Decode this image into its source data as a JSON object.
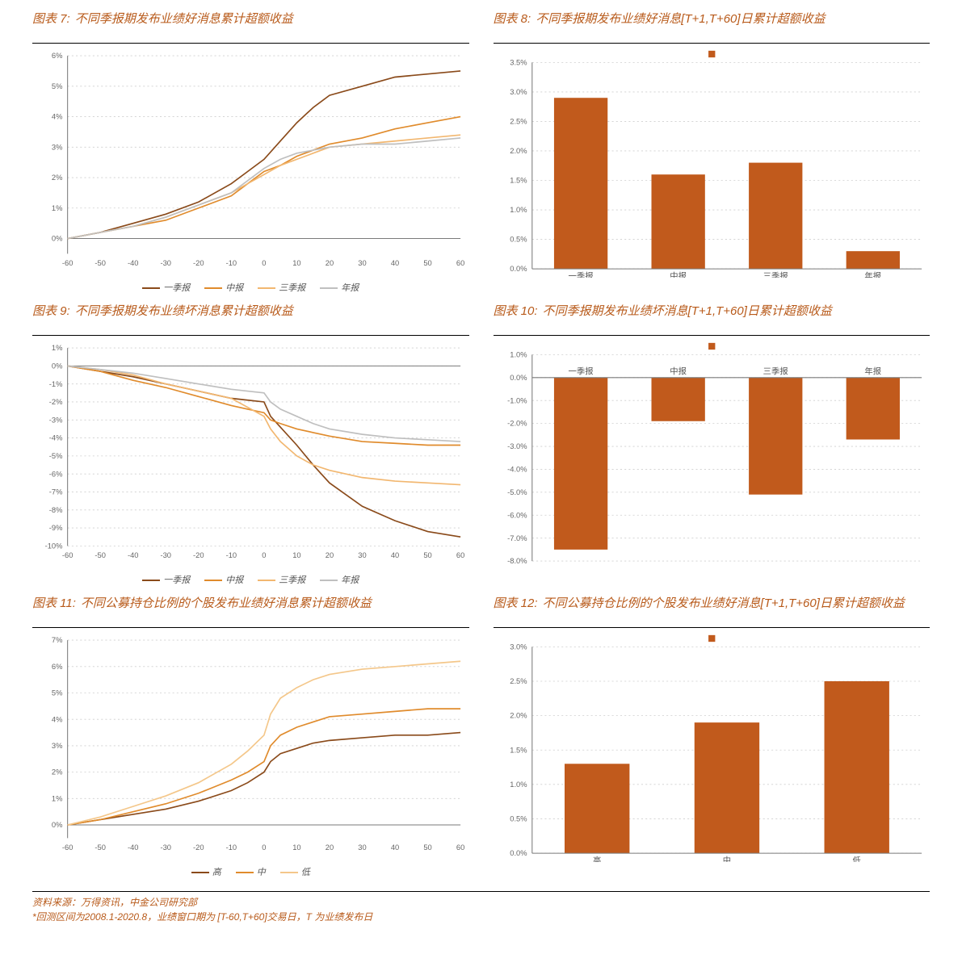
{
  "palette": {
    "bg": "#ffffff",
    "axis": "#7a7a7a",
    "grid": "#cfcfcf",
    "title": "#b85a1a"
  },
  "footer": {
    "line1": "资料来源：万得资讯，中金公司研究部",
    "line2": "*回测区间为2008.1-2020.8，业绩窗口期为 [T-60,T+60]交易日，T 为业绩发布日"
  },
  "charts": [
    {
      "id": "c7",
      "type": "line",
      "prefix": "图表 7:",
      "title": "不同季报期发布业绩好消息累计超额收益",
      "x_domain": [
        -60,
        60
      ],
      "y_domain": [
        -0.005,
        0.06
      ],
      "x_ticks": [
        -60,
        -50,
        -40,
        -30,
        -20,
        -10,
        0,
        10,
        20,
        30,
        40,
        50,
        60
      ],
      "y_ticks": [
        0,
        0.01,
        0.02,
        0.03,
        0.04,
        0.05,
        0.06
      ],
      "y_labels": [
        "0%",
        "1%",
        "2%",
        "3%",
        "4%",
        "5%",
        "6%"
      ],
      "x_labels": [
        "-60",
        "-50",
        "-40",
        "-30",
        "-20",
        "-10",
        "0",
        "10",
        "20",
        "30",
        "40",
        "50",
        "60"
      ],
      "legend": [
        "一季报",
        "中报",
        "三季报",
        "年报"
      ],
      "colors": [
        "#8a4a1a",
        "#e08b2c",
        "#f2b770",
        "#bfbfbf"
      ],
      "line_width": 1.6,
      "series": [
        [
          [
            -60,
            0
          ],
          [
            -50,
            0.002
          ],
          [
            -40,
            0.005
          ],
          [
            -30,
            0.008
          ],
          [
            -20,
            0.012
          ],
          [
            -10,
            0.018
          ],
          [
            -5,
            0.022
          ],
          [
            0,
            0.026
          ],
          [
            5,
            0.032
          ],
          [
            10,
            0.038
          ],
          [
            15,
            0.043
          ],
          [
            20,
            0.047
          ],
          [
            30,
            0.05
          ],
          [
            40,
            0.053
          ],
          [
            50,
            0.054
          ],
          [
            60,
            0.055
          ]
        ],
        [
          [
            -60,
            0
          ],
          [
            -50,
            0.002
          ],
          [
            -40,
            0.004
          ],
          [
            -30,
            0.006
          ],
          [
            -20,
            0.01
          ],
          [
            -10,
            0.014
          ],
          [
            -5,
            0.018
          ],
          [
            0,
            0.022
          ],
          [
            5,
            0.024
          ],
          [
            10,
            0.027
          ],
          [
            15,
            0.029
          ],
          [
            20,
            0.031
          ],
          [
            30,
            0.033
          ],
          [
            40,
            0.036
          ],
          [
            50,
            0.038
          ],
          [
            60,
            0.04
          ]
        ],
        [
          [
            -60,
            0
          ],
          [
            -50,
            0.002
          ],
          [
            -40,
            0.004
          ],
          [
            -30,
            0.007
          ],
          [
            -20,
            0.011
          ],
          [
            -10,
            0.015
          ],
          [
            -5,
            0.018
          ],
          [
            0,
            0.021
          ],
          [
            5,
            0.024
          ],
          [
            10,
            0.026
          ],
          [
            15,
            0.028
          ],
          [
            20,
            0.03
          ],
          [
            30,
            0.031
          ],
          [
            40,
            0.032
          ],
          [
            50,
            0.033
          ],
          [
            60,
            0.034
          ]
        ],
        [
          [
            -60,
            0
          ],
          [
            -50,
            0.002
          ],
          [
            -40,
            0.004
          ],
          [
            -30,
            0.007
          ],
          [
            -20,
            0.011
          ],
          [
            -10,
            0.015
          ],
          [
            -5,
            0.019
          ],
          [
            0,
            0.023
          ],
          [
            5,
            0.026
          ],
          [
            10,
            0.028
          ],
          [
            15,
            0.029
          ],
          [
            20,
            0.03
          ],
          [
            30,
            0.031
          ],
          [
            40,
            0.031
          ],
          [
            50,
            0.032
          ],
          [
            60,
            0.033
          ]
        ]
      ]
    },
    {
      "id": "c8",
      "type": "bar",
      "prefix": "图表 8:",
      "title": "不同季报期发布业绩好消息[T+1,T+60]日累计超额收益",
      "categories": [
        "一季报",
        "中报",
        "三季报",
        "年报"
      ],
      "values": [
        0.029,
        0.016,
        0.018,
        0.003
      ],
      "y_domain": [
        0,
        0.035
      ],
      "y_ticks": [
        0,
        0.005,
        0.01,
        0.015,
        0.02,
        0.025,
        0.03,
        0.035
      ],
      "y_labels": [
        "0.0%",
        "0.5%",
        "1.0%",
        "1.5%",
        "2.0%",
        "2.5%",
        "3.0%",
        "3.5%"
      ],
      "bar_color": "#c15a1c",
      "bar_width": 0.55,
      "legend_marker": true
    },
    {
      "id": "c9",
      "type": "line",
      "prefix": "图表 9:",
      "title": "不同季报期发布业绩坏消息累计超额收益",
      "x_domain": [
        -60,
        60
      ],
      "y_domain": [
        -0.1,
        0.01
      ],
      "x_ticks": [
        -60,
        -50,
        -40,
        -30,
        -20,
        -10,
        0,
        10,
        20,
        30,
        40,
        50,
        60
      ],
      "y_ticks": [
        -0.1,
        -0.09,
        -0.08,
        -0.07,
        -0.06,
        -0.05,
        -0.04,
        -0.03,
        -0.02,
        -0.01,
        0,
        0.01
      ],
      "y_labels": [
        "-10%",
        "-9%",
        "-8%",
        "-7%",
        "-6%",
        "-5%",
        "-4%",
        "-3%",
        "-2%",
        "-1%",
        "0%",
        "1%"
      ],
      "x_labels": [
        "-60",
        "-50",
        "-40",
        "-30",
        "-20",
        "-10",
        "0",
        "10",
        "20",
        "30",
        "40",
        "50",
        "60"
      ],
      "legend": [
        "一季报",
        "中报",
        "三季报",
        "年报"
      ],
      "colors": [
        "#8a4a1a",
        "#e08b2c",
        "#f2b770",
        "#bfbfbf"
      ],
      "line_width": 1.6,
      "series": [
        [
          [
            -60,
            0
          ],
          [
            -50,
            -0.003
          ],
          [
            -40,
            -0.006
          ],
          [
            -30,
            -0.01
          ],
          [
            -20,
            -0.014
          ],
          [
            -10,
            -0.018
          ],
          [
            -5,
            -0.019
          ],
          [
            0,
            -0.02
          ],
          [
            2,
            -0.028
          ],
          [
            5,
            -0.034
          ],
          [
            10,
            -0.044
          ],
          [
            15,
            -0.055
          ],
          [
            20,
            -0.065
          ],
          [
            30,
            -0.078
          ],
          [
            40,
            -0.086
          ],
          [
            50,
            -0.092
          ],
          [
            60,
            -0.095
          ]
        ],
        [
          [
            -60,
            0
          ],
          [
            -50,
            -0.003
          ],
          [
            -40,
            -0.008
          ],
          [
            -30,
            -0.012
          ],
          [
            -20,
            -0.017
          ],
          [
            -10,
            -0.022
          ],
          [
            -5,
            -0.024
          ],
          [
            0,
            -0.026
          ],
          [
            2,
            -0.03
          ],
          [
            5,
            -0.032
          ],
          [
            10,
            -0.035
          ],
          [
            15,
            -0.037
          ],
          [
            20,
            -0.039
          ],
          [
            30,
            -0.042
          ],
          [
            40,
            -0.043
          ],
          [
            50,
            -0.044
          ],
          [
            60,
            -0.044
          ]
        ],
        [
          [
            -60,
            0
          ],
          [
            -50,
            -0.002
          ],
          [
            -40,
            -0.005
          ],
          [
            -30,
            -0.01
          ],
          [
            -20,
            -0.014
          ],
          [
            -10,
            -0.018
          ],
          [
            -5,
            -0.023
          ],
          [
            0,
            -0.028
          ],
          [
            2,
            -0.035
          ],
          [
            5,
            -0.042
          ],
          [
            10,
            -0.05
          ],
          [
            15,
            -0.055
          ],
          [
            20,
            -0.058
          ],
          [
            30,
            -0.062
          ],
          [
            40,
            -0.064
          ],
          [
            50,
            -0.065
          ],
          [
            60,
            -0.066
          ]
        ],
        [
          [
            -60,
            0
          ],
          [
            -50,
            -0.002
          ],
          [
            -40,
            -0.004
          ],
          [
            -30,
            -0.007
          ],
          [
            -20,
            -0.01
          ],
          [
            -10,
            -0.013
          ],
          [
            -5,
            -0.014
          ],
          [
            0,
            -0.015
          ],
          [
            2,
            -0.02
          ],
          [
            5,
            -0.024
          ],
          [
            10,
            -0.028
          ],
          [
            15,
            -0.032
          ],
          [
            20,
            -0.035
          ],
          [
            30,
            -0.038
          ],
          [
            40,
            -0.04
          ],
          [
            50,
            -0.041
          ],
          [
            60,
            -0.042
          ]
        ]
      ]
    },
    {
      "id": "c10",
      "type": "bar",
      "prefix": "图表 10:",
      "title": "不同季报期发布业绩坏消息[T+1,T+60]日累计超额收益",
      "categories": [
        "一季报",
        "中报",
        "三季报",
        "年报"
      ],
      "values": [
        -0.075,
        -0.019,
        -0.051,
        -0.027
      ],
      "y_domain": [
        -0.08,
        0.01
      ],
      "y_ticks": [
        -0.08,
        -0.07,
        -0.06,
        -0.05,
        -0.04,
        -0.03,
        -0.02,
        -0.01,
        0,
        0.01
      ],
      "y_labels": [
        "-8.0%",
        "-7.0%",
        "-6.0%",
        "-5.0%",
        "-4.0%",
        "-3.0%",
        "-2.0%",
        "-1.0%",
        "0.0%",
        "1.0%"
      ],
      "bar_color": "#c15a1c",
      "bar_width": 0.55,
      "legend_marker": true
    },
    {
      "id": "c11",
      "type": "line",
      "prefix": "图表 11:",
      "title": "不同公募持仓比例的个股发布业绩好消息累计超额收益",
      "x_domain": [
        -60,
        60
      ],
      "y_domain": [
        -0.005,
        0.07
      ],
      "x_ticks": [
        -60,
        -50,
        -40,
        -30,
        -20,
        -10,
        0,
        10,
        20,
        30,
        40,
        50,
        60
      ],
      "y_ticks": [
        0,
        0.01,
        0.02,
        0.03,
        0.04,
        0.05,
        0.06,
        0.07
      ],
      "y_labels": [
        "0%",
        "1%",
        "2%",
        "3%",
        "4%",
        "5%",
        "6%",
        "7%"
      ],
      "x_labels": [
        "-60",
        "-50",
        "-40",
        "-30",
        "-20",
        "-10",
        "0",
        "10",
        "20",
        "30",
        "40",
        "50",
        "60"
      ],
      "legend": [
        "高",
        "中",
        "低"
      ],
      "colors": [
        "#8a4a1a",
        "#e08b2c",
        "#f4c78a"
      ],
      "line_width": 1.6,
      "series": [
        [
          [
            -60,
            0
          ],
          [
            -50,
            0.002
          ],
          [
            -40,
            0.004
          ],
          [
            -30,
            0.006
          ],
          [
            -20,
            0.009
          ],
          [
            -10,
            0.013
          ],
          [
            -5,
            0.016
          ],
          [
            0,
            0.02
          ],
          [
            2,
            0.024
          ],
          [
            5,
            0.027
          ],
          [
            10,
            0.029
          ],
          [
            15,
            0.031
          ],
          [
            20,
            0.032
          ],
          [
            30,
            0.033
          ],
          [
            40,
            0.034
          ],
          [
            50,
            0.034
          ],
          [
            60,
            0.035
          ]
        ],
        [
          [
            -60,
            0
          ],
          [
            -50,
            0.002
          ],
          [
            -40,
            0.005
          ],
          [
            -30,
            0.008
          ],
          [
            -20,
            0.012
          ],
          [
            -10,
            0.017
          ],
          [
            -5,
            0.02
          ],
          [
            0,
            0.024
          ],
          [
            2,
            0.03
          ],
          [
            5,
            0.034
          ],
          [
            10,
            0.037
          ],
          [
            15,
            0.039
          ],
          [
            20,
            0.041
          ],
          [
            30,
            0.042
          ],
          [
            40,
            0.043
          ],
          [
            50,
            0.044
          ],
          [
            60,
            0.044
          ]
        ],
        [
          [
            -60,
            0
          ],
          [
            -50,
            0.003
          ],
          [
            -40,
            0.007
          ],
          [
            -30,
            0.011
          ],
          [
            -20,
            0.016
          ],
          [
            -10,
            0.023
          ],
          [
            -5,
            0.028
          ],
          [
            0,
            0.034
          ],
          [
            2,
            0.042
          ],
          [
            5,
            0.048
          ],
          [
            10,
            0.052
          ],
          [
            15,
            0.055
          ],
          [
            20,
            0.057
          ],
          [
            30,
            0.059
          ],
          [
            40,
            0.06
          ],
          [
            50,
            0.061
          ],
          [
            60,
            0.062
          ]
        ]
      ]
    },
    {
      "id": "c12",
      "type": "bar",
      "prefix": "图表 12:",
      "title": "不同公募持仓比例的个股发布业绩好消息[T+1,T+60]日累计超额收益",
      "categories": [
        "高",
        "中",
        "低"
      ],
      "values": [
        0.013,
        0.019,
        0.025
      ],
      "y_domain": [
        0,
        0.03
      ],
      "y_ticks": [
        0,
        0.005,
        0.01,
        0.015,
        0.02,
        0.025,
        0.03
      ],
      "y_labels": [
        "0.0%",
        "0.5%",
        "1.0%",
        "1.5%",
        "2.0%",
        "2.5%",
        "3.0%"
      ],
      "bar_color": "#c15a1c",
      "bar_width": 0.5,
      "legend_marker": true
    }
  ]
}
